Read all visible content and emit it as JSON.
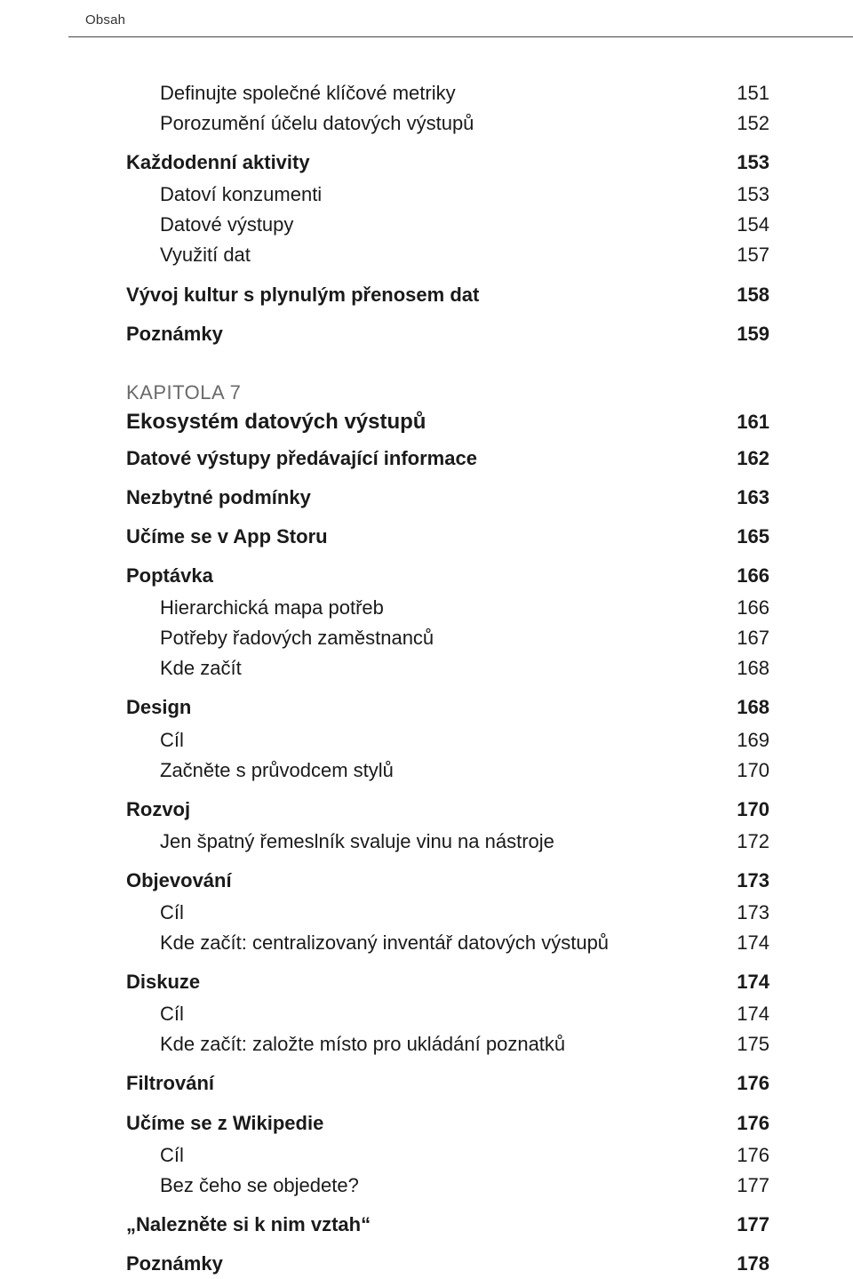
{
  "runningHead": "Obsah",
  "preChapter": [
    {
      "level": 2,
      "label": "Definujte společné klíčové metriky",
      "page": "151"
    },
    {
      "level": 2,
      "label": "Porozumění účelu datových výstupů",
      "page": "152"
    },
    {
      "level": 1,
      "label": "Každodenní aktivity",
      "page": "153"
    },
    {
      "level": 2,
      "label": "Datoví konzumenti",
      "page": "153"
    },
    {
      "level": 2,
      "label": "Datové výstupy",
      "page": "154"
    },
    {
      "level": 2,
      "label": "Využití dat",
      "page": "157"
    },
    {
      "level": 1,
      "label": "Vývoj kultur s plynulým přenosem dat",
      "page": "158"
    },
    {
      "level": 1,
      "label": "Poznámky",
      "page": "159"
    }
  ],
  "chapter": {
    "kicker": "KAPITOLA 7",
    "title": "Ekosystém datových výstupů",
    "page": "161"
  },
  "postChapter": [
    {
      "level": 1,
      "label": "Datové výstupy předávající informace",
      "page": "162"
    },
    {
      "level": 1,
      "label": "Nezbytné podmínky",
      "page": "163"
    },
    {
      "level": 1,
      "label": "Učíme se v App Storu",
      "page": "165"
    },
    {
      "level": 1,
      "label": "Poptávka",
      "page": "166"
    },
    {
      "level": 2,
      "label": "Hierarchická mapa potřeb",
      "page": "166"
    },
    {
      "level": 2,
      "label": "Potřeby řadových zaměstnanců",
      "page": "167"
    },
    {
      "level": 2,
      "label": "Kde začít",
      "page": "168"
    },
    {
      "level": 1,
      "label": "Design",
      "page": "168"
    },
    {
      "level": 2,
      "label": "Cíl",
      "page": "169"
    },
    {
      "level": 2,
      "label": "Začněte s průvodcem stylů",
      "page": "170"
    },
    {
      "level": 1,
      "label": "Rozvoj",
      "page": "170"
    },
    {
      "level": 2,
      "label": "Jen špatný řemeslník svaluje vinu na nástroje",
      "page": "172"
    },
    {
      "level": 1,
      "label": "Objevování",
      "page": "173"
    },
    {
      "level": 2,
      "label": "Cíl",
      "page": "173"
    },
    {
      "level": 2,
      "label": "Kde začít: centralizovaný inventář datových výstupů",
      "page": "174"
    },
    {
      "level": 1,
      "label": "Diskuze",
      "page": "174"
    },
    {
      "level": 2,
      "label": "Cíl",
      "page": "174"
    },
    {
      "level": 2,
      "label": "Kde začít: založte místo pro ukládání poznatků",
      "page": "175"
    },
    {
      "level": 1,
      "label": "Filtrování",
      "page": "176"
    },
    {
      "level": 1,
      "label": "Učíme se z Wikipedie",
      "page": "176"
    },
    {
      "level": 2,
      "label": "Cíl",
      "page": "176"
    },
    {
      "level": 2,
      "label": "Bez čeho se objedete?",
      "page": "177"
    },
    {
      "level": 1,
      "label": "„Nalezněte si k nim vztah“",
      "page": "177"
    },
    {
      "level": 1,
      "label": "Poznámky",
      "page": "178"
    }
  ]
}
